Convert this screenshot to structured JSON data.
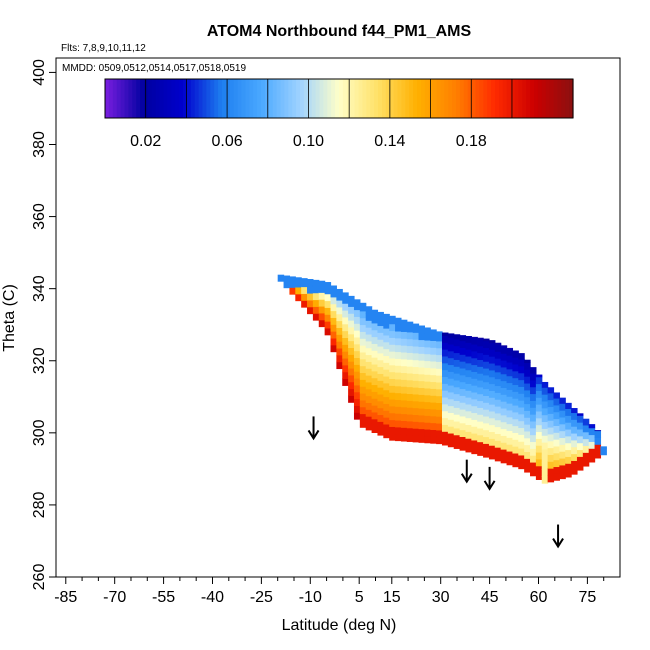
{
  "chart_data": {
    "type": "heatmap",
    "title": "ATOM4 Northbound f44_PM1_AMS",
    "subtitle_flights": "Flts: 7,8,9,10,11,12",
    "subtitle_dates": "MMDD: 0509,0512,0514,0517,0518,0519",
    "xlabel": "Latitude (deg N)",
    "ylabel": "Theta (C)",
    "xlim": [
      -88,
      85
    ],
    "ylim": [
      260,
      404
    ],
    "x_ticks": [
      -85,
      -70,
      -55,
      -40,
      -25,
      -10,
      5,
      15,
      30,
      45,
      60,
      75
    ],
    "x_minor_ticks": [
      -80,
      -75,
      -65,
      -60,
      -50,
      -45,
      -35,
      -30,
      -20,
      -15,
      -5,
      0,
      10,
      20,
      25,
      35,
      40,
      50,
      55,
      65,
      70,
      80
    ],
    "y_ticks": [
      260,
      280,
      300,
      320,
      340,
      360,
      380,
      400
    ],
    "colorbar": {
      "min": 0.0,
      "max": 0.23,
      "ticks": [
        0.02,
        0.06,
        0.1,
        0.14,
        0.18
      ],
      "segment_bounds": [
        0.04,
        0.08,
        0.12,
        0.16,
        0.2
      ],
      "colors": [
        "#7a1fe0",
        "#0000a0",
        "#0000cd",
        "#1e7ff0",
        "#4aa8ff",
        "#9fd2ff",
        "#ffffc8",
        "#ffe066",
        "#ffb000",
        "#ff7f00",
        "#ff2a00",
        "#cc0000",
        "#8b1010"
      ]
    },
    "field": {
      "lat_start": -20,
      "lat_end": 80,
      "lat_step": 1.8,
      "theta_step": 1.9,
      "upper_boundary": [
        [
          -20,
          344
        ],
        [
          -5,
          342
        ],
        [
          10,
          334
        ],
        [
          30,
          328
        ],
        [
          45,
          326
        ],
        [
          55,
          322
        ],
        [
          62,
          314
        ],
        [
          72,
          306
        ],
        [
          78,
          301
        ],
        [
          80,
          296
        ]
      ],
      "lower_boundary": [
        [
          -20,
          343
        ],
        [
          -5,
          328
        ],
        [
          5,
          302
        ],
        [
          15,
          298
        ],
        [
          30,
          297
        ],
        [
          45,
          293
        ],
        [
          55,
          290
        ],
        [
          62,
          286
        ],
        [
          70,
          288
        ],
        [
          78,
          293
        ],
        [
          80,
          294
        ]
      ]
    },
    "arrows": [
      {
        "lat": -9,
        "theta": 304
      },
      {
        "lat": 38,
        "theta": 292
      },
      {
        "lat": 45,
        "theta": 290
      },
      {
        "lat": 66,
        "theta": 274
      }
    ],
    "grid": false,
    "legend": "colorbar top"
  }
}
